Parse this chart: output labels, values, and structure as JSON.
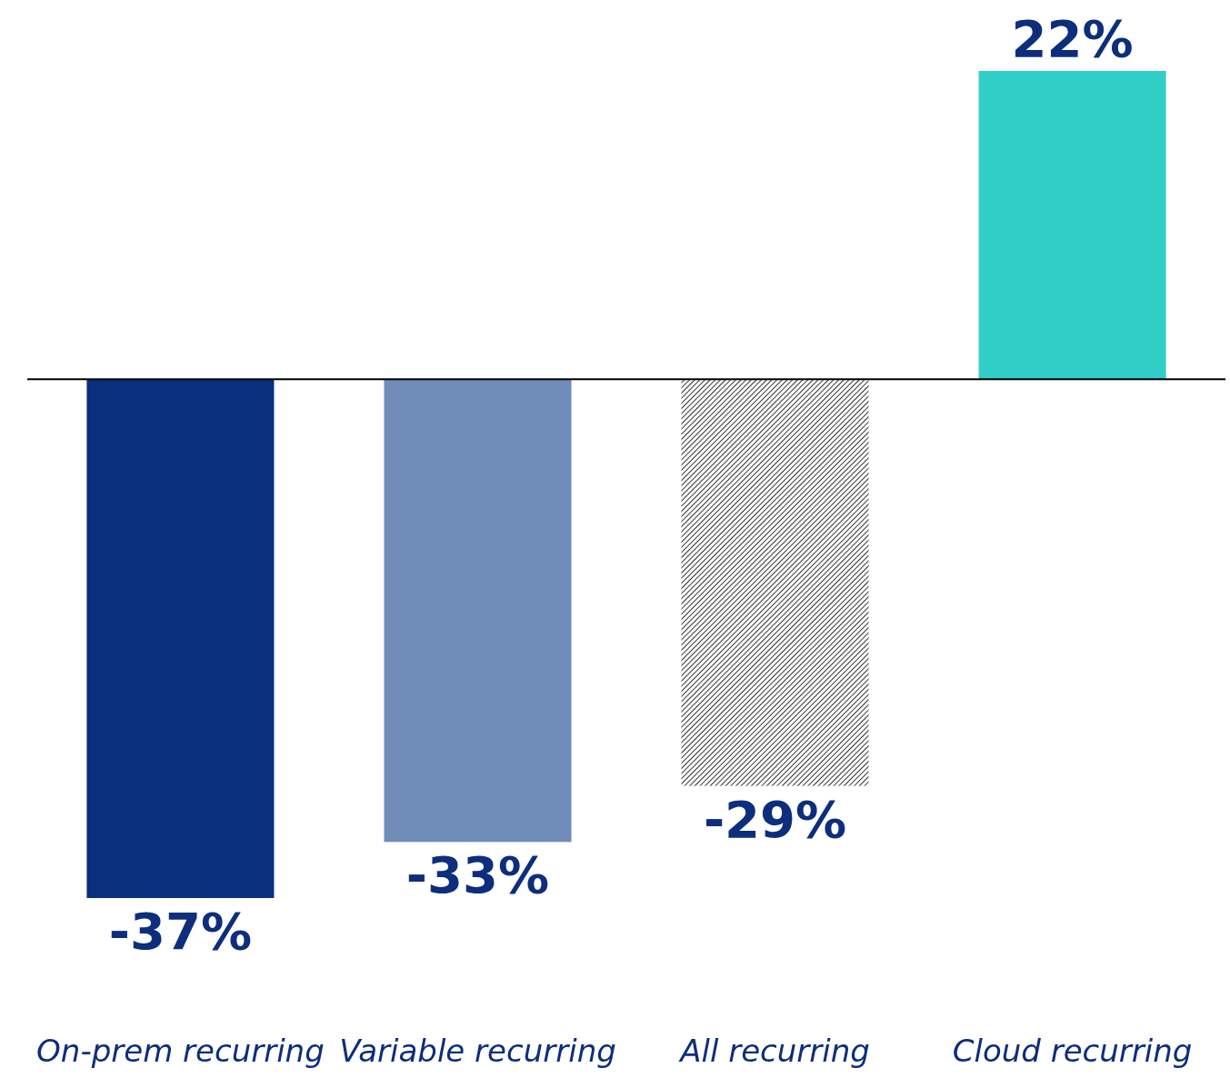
{
  "chart_data": {
    "type": "bar",
    "categories": [
      "On-prem recurring",
      "Variable recurring",
      "All recurring",
      "Cloud recurring"
    ],
    "values": [
      -37,
      -33,
      -29,
      22
    ],
    "value_labels": [
      "-37%",
      "-33%",
      "-29%",
      "22%"
    ],
    "colors": [
      "#0a2f7c",
      "#6f8db8",
      "#333333",
      "#31cec8"
    ],
    "tick_labels": "x"
  }
}
